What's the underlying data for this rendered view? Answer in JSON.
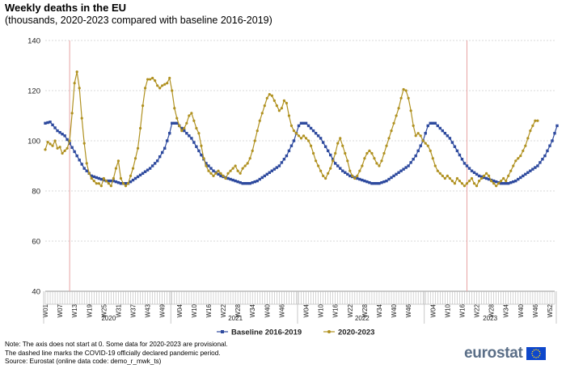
{
  "chart_data": {
    "type": "line",
    "title": "Weekly deaths in the EU",
    "subtitle": "(thousands, 2020-2023 compared with baseline 2016-2019)",
    "xlabel": "",
    "ylabel": "",
    "ylim": [
      40,
      140
    ],
    "yticks": [
      "40",
      "60",
      "80",
      "100",
      "120",
      "140"
    ],
    "week_labels": [
      "W01",
      "W07",
      "W13",
      "W19",
      "W25",
      "W31",
      "W37",
      "W43",
      "W49",
      "W04",
      "W10",
      "W16",
      "W22",
      "W28",
      "W34",
      "W40",
      "W46",
      "W04",
      "W10",
      "W16",
      "W22",
      "W28",
      "W34",
      "W40",
      "W46",
      "W04",
      "W10",
      "W16",
      "W22",
      "W28",
      "W34",
      "W40",
      "W46",
      "W52"
    ],
    "years": [
      "2020",
      "2021",
      "2022",
      "2023"
    ],
    "pandemic_markers": [
      {
        "year": "2020",
        "week": 11
      },
      {
        "year": "2023",
        "week": 18
      }
    ],
    "series": [
      {
        "name": "Baseline 2016-2019",
        "color": "#2e4a9e",
        "marker": "square",
        "keypoints": [
          [
            1,
            107
          ],
          [
            3,
            107.5
          ],
          [
            6,
            104
          ],
          [
            9,
            102
          ],
          [
            11,
            99
          ],
          [
            14,
            94
          ],
          [
            17,
            89
          ],
          [
            20,
            86
          ],
          [
            23,
            85
          ],
          [
            26,
            84
          ],
          [
            29,
            84
          ],
          [
            32,
            83
          ],
          [
            35,
            83
          ],
          [
            38,
            85
          ],
          [
            41,
            87
          ],
          [
            44,
            89
          ],
          [
            47,
            92
          ],
          [
            50,
            97
          ],
          [
            52,
            103
          ],
          [
            53,
            107
          ],
          [
            55,
            107
          ],
          [
            58,
            104
          ],
          [
            61,
            101
          ],
          [
            64,
            96
          ],
          [
            67,
            91
          ],
          [
            70,
            88
          ],
          [
            73,
            86
          ],
          [
            76,
            85
          ],
          [
            79,
            84
          ],
          [
            82,
            83
          ],
          [
            85,
            83
          ],
          [
            88,
            84
          ],
          [
            91,
            86
          ],
          [
            94,
            88
          ],
          [
            97,
            90
          ],
          [
            100,
            94
          ],
          [
            103,
            100
          ],
          [
            105,
            106
          ],
          [
            106,
            107
          ],
          [
            108,
            107
          ],
          [
            111,
            104
          ],
          [
            114,
            101
          ],
          [
            117,
            96
          ],
          [
            120,
            91
          ],
          [
            123,
            88
          ],
          [
            126,
            86
          ],
          [
            129,
            85
          ],
          [
            132,
            84
          ],
          [
            135,
            83
          ],
          [
            138,
            83
          ],
          [
            141,
            84
          ],
          [
            144,
            86
          ],
          [
            147,
            88
          ],
          [
            150,
            90
          ],
          [
            153,
            94
          ],
          [
            156,
            100
          ],
          [
            158,
            106
          ],
          [
            159,
            107
          ],
          [
            161,
            107
          ],
          [
            164,
            104
          ],
          [
            167,
            101
          ],
          [
            170,
            96
          ],
          [
            173,
            91
          ],
          [
            176,
            88
          ],
          [
            179,
            86
          ],
          [
            182,
            85
          ],
          [
            185,
            84
          ],
          [
            188,
            83
          ],
          [
            191,
            83
          ],
          [
            194,
            84
          ],
          [
            197,
            86
          ],
          [
            200,
            88
          ],
          [
            203,
            90
          ],
          [
            206,
            94
          ],
          [
            209,
            100
          ],
          [
            211,
            106
          ]
        ]
      },
      {
        "name": "2020-2023",
        "color": "#b09120",
        "marker": "diamond",
        "keypoints": [
          [
            1,
            96.5
          ],
          [
            2,
            99.5
          ],
          [
            4,
            98
          ],
          [
            5,
            100
          ],
          [
            6,
            97
          ],
          [
            7,
            97.5
          ],
          [
            8,
            95
          ],
          [
            9,
            96
          ],
          [
            10,
            97
          ],
          [
            11,
            100
          ],
          [
            12,
            111
          ],
          [
            13,
            123
          ],
          [
            14,
            127.5
          ],
          [
            15,
            121
          ],
          [
            16,
            109
          ],
          [
            17,
            99
          ],
          [
            18,
            91
          ],
          [
            19,
            87
          ],
          [
            20,
            85
          ],
          [
            21,
            84
          ],
          [
            22,
            83
          ],
          [
            23,
            83
          ],
          [
            24,
            82
          ],
          [
            25,
            85
          ],
          [
            26,
            84
          ],
          [
            27,
            83
          ],
          [
            28,
            82
          ],
          [
            29,
            85
          ],
          [
            30,
            89
          ],
          [
            31,
            92
          ],
          [
            32,
            85
          ],
          [
            33,
            83
          ],
          [
            34,
            82
          ],
          [
            35,
            83
          ],
          [
            36,
            86
          ],
          [
            37,
            89
          ],
          [
            38,
            93
          ],
          [
            39,
            97
          ],
          [
            40,
            105
          ],
          [
            41,
            114
          ],
          [
            42,
            121
          ],
          [
            43,
            124.5
          ],
          [
            44,
            124.5
          ],
          [
            45,
            125
          ],
          [
            46,
            124
          ],
          [
            47,
            122
          ],
          [
            48,
            121
          ],
          [
            49,
            122
          ],
          [
            50,
            122.5
          ],
          [
            51,
            123
          ],
          [
            52,
            125
          ],
          [
            53,
            120
          ],
          [
            54,
            113
          ],
          [
            55,
            109
          ],
          [
            56,
            106
          ],
          [
            57,
            104
          ],
          [
            58,
            105
          ],
          [
            59,
            107
          ],
          [
            60,
            110
          ],
          [
            61,
            111
          ],
          [
            62,
            108
          ],
          [
            63,
            105
          ],
          [
            64,
            103
          ],
          [
            65,
            98
          ],
          [
            66,
            93
          ],
          [
            67,
            90
          ],
          [
            68,
            88
          ],
          [
            69,
            87
          ],
          [
            70,
            86
          ],
          [
            71,
            87
          ],
          [
            72,
            88
          ],
          [
            73,
            87
          ],
          [
            74,
            86
          ],
          [
            75,
            85
          ],
          [
            76,
            87
          ],
          [
            77,
            88
          ],
          [
            78,
            89
          ],
          [
            79,
            90
          ],
          [
            80,
            88
          ],
          [
            81,
            87
          ],
          [
            82,
            89
          ],
          [
            83,
            90
          ],
          [
            84,
            91
          ],
          [
            85,
            93
          ],
          [
            86,
            96
          ],
          [
            87,
            100
          ],
          [
            88,
            104
          ],
          [
            89,
            108
          ],
          [
            90,
            111
          ],
          [
            91,
            114
          ],
          [
            92,
            117
          ],
          [
            93,
            118.5
          ],
          [
            94,
            118
          ],
          [
            95,
            116
          ],
          [
            96,
            114
          ],
          [
            97,
            112
          ],
          [
            98,
            113
          ],
          [
            99,
            116
          ],
          [
            100,
            115
          ],
          [
            101,
            110
          ],
          [
            102,
            106
          ],
          [
            103,
            104
          ],
          [
            104,
            103
          ],
          [
            105,
            102
          ],
          [
            106,
            101
          ],
          [
            107,
            102
          ],
          [
            108,
            101
          ],
          [
            109,
            100
          ],
          [
            110,
            98
          ],
          [
            111,
            95
          ],
          [
            112,
            92
          ],
          [
            113,
            90
          ],
          [
            114,
            88
          ],
          [
            115,
            86
          ],
          [
            116,
            85
          ],
          [
            117,
            87
          ],
          [
            118,
            89
          ],
          [
            119,
            92
          ],
          [
            120,
            95
          ],
          [
            121,
            99
          ],
          [
            122,
            101
          ],
          [
            123,
            98
          ],
          [
            124,
            95
          ],
          [
            125,
            92
          ],
          [
            126,
            88
          ],
          [
            127,
            86
          ],
          [
            128,
            85
          ],
          [
            129,
            86
          ],
          [
            130,
            88
          ],
          [
            131,
            90
          ],
          [
            132,
            93
          ],
          [
            133,
            95
          ],
          [
            134,
            96
          ],
          [
            135,
            95
          ],
          [
            136,
            93
          ],
          [
            137,
            91
          ],
          [
            138,
            90
          ],
          [
            139,
            92
          ],
          [
            140,
            95
          ],
          [
            141,
            98
          ],
          [
            142,
            101
          ],
          [
            143,
            104
          ],
          [
            144,
            107
          ],
          [
            145,
            110
          ],
          [
            146,
            113
          ],
          [
            147,
            117
          ],
          [
            148,
            120.5
          ],
          [
            149,
            120
          ],
          [
            150,
            117
          ],
          [
            151,
            112
          ],
          [
            152,
            106
          ],
          [
            153,
            102
          ],
          [
            154,
            103
          ],
          [
            155,
            102
          ],
          [
            156,
            100
          ],
          [
            157,
            99
          ],
          [
            158,
            98
          ],
          [
            159,
            96
          ],
          [
            160,
            93
          ],
          [
            161,
            90
          ],
          [
            162,
            88
          ],
          [
            163,
            87
          ],
          [
            164,
            86
          ],
          [
            165,
            85
          ],
          [
            166,
            86
          ],
          [
            167,
            85
          ],
          [
            168,
            84
          ],
          [
            169,
            83
          ],
          [
            170,
            85
          ],
          [
            171,
            84
          ],
          [
            172,
            83
          ],
          [
            173,
            82
          ],
          [
            174,
            83
          ],
          [
            175,
            84
          ],
          [
            176,
            85
          ],
          [
            177,
            83
          ],
          [
            178,
            82
          ],
          [
            179,
            84
          ],
          [
            180,
            85
          ],
          [
            181,
            86
          ],
          [
            182,
            87
          ],
          [
            183,
            86
          ],
          [
            184,
            84
          ],
          [
            185,
            83
          ],
          [
            186,
            82
          ],
          [
            187,
            83
          ],
          [
            188,
            84
          ],
          [
            189,
            85
          ],
          [
            190,
            84
          ],
          [
            191,
            86
          ],
          [
            192,
            88
          ],
          [
            193,
            90
          ],
          [
            194,
            92
          ],
          [
            195,
            93
          ],
          [
            196,
            94
          ],
          [
            197,
            96
          ],
          [
            198,
            98
          ],
          [
            199,
            101
          ],
          [
            200,
            104
          ],
          [
            201,
            106
          ],
          [
            202,
            108
          ],
          [
            203,
            108
          ]
        ]
      }
    ],
    "legend": [
      "Baseline 2016-2019",
      "2020-2023"
    ],
    "legend_position": "bottom"
  },
  "notes": [
    "Note: The axis does not start at 0. Some data for 2020-2023 are provisional.",
    "The dashed line marks the COVID-19 officially declared pandemic period.",
    "Source: Eurostat (online data code: demo_r_mwk_ts)"
  ],
  "logo": {
    "text": "eurostat",
    "flag_color": "#0e47cb",
    "star_color": "#ffd617"
  }
}
